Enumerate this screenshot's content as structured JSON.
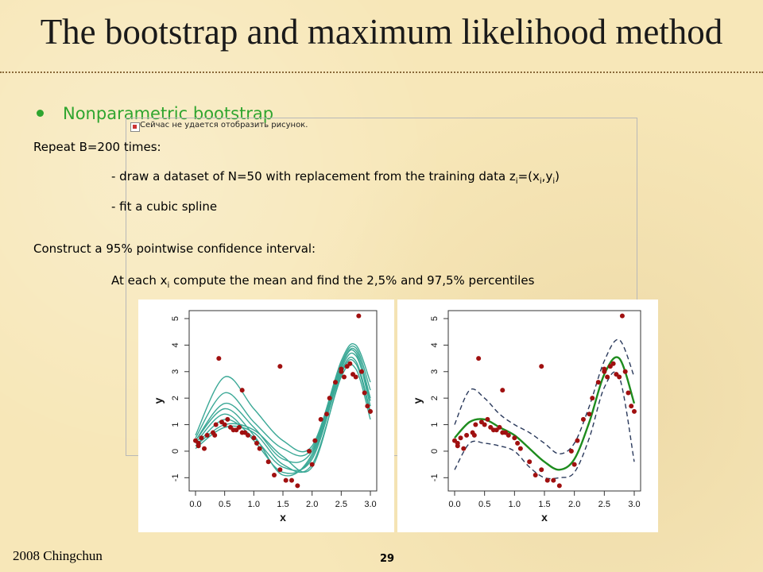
{
  "slide": {
    "title": "The bootstrap and maximum likelihood method",
    "bullet": "Nonparametric bootstrap",
    "placeholder_text": "Сейчас не удается отобразить рисунок.",
    "lines": {
      "repeat": "Repeat B=200 times:",
      "draw_prefix": "- draw a dataset of N=50 with replacement from the training data z",
      "draw_sub_i": "i",
      "draw_mid": "=(x",
      "draw_sub_i2": "i",
      "draw_comma": ",y",
      "draw_sub_i3": "i",
      "draw_end": ")",
      "fit": "- fit a cubic spline",
      "construct": "Construct a 95% pointwise confidence interval:",
      "atEach_prefix": "At each x",
      "atEach_sub": "i",
      "atEach_rest": " compute the mean and find the 2,5% and 97,5% percentiles"
    },
    "footer_left": "2008 Chingchun",
    "page_number": "29"
  },
  "colors": {
    "point": "#a01010",
    "bootstrap_curve": "#3aa896",
    "mean_curve": "#1e8c1e",
    "band": "#2b3a5c",
    "bullet": "#2fa52f"
  },
  "chart_data": [
    {
      "type": "scatter",
      "panel": "left",
      "overlay": "bootstrap cubic spline fits",
      "xlabel": "x",
      "ylabel": "y",
      "xlim": [
        0.0,
        3.0
      ],
      "ylim": [
        -1.5,
        5.3
      ],
      "xticks": [
        "0.0",
        "0.5",
        "1.0",
        "1.5",
        "2.0",
        "2.5",
        "3.0"
      ],
      "yticks": [
        "-1",
        "0",
        "1",
        "2",
        "3",
        "4",
        "5"
      ],
      "grid": false,
      "points": {
        "x": [
          0.0,
          0.05,
          0.1,
          0.15,
          0.2,
          0.3,
          0.33,
          0.4,
          0.45,
          0.5,
          0.55,
          0.6,
          0.65,
          0.7,
          0.75,
          0.8,
          0.85,
          0.9,
          1.0,
          1.05,
          1.1,
          1.35,
          1.45,
          1.55,
          1.65,
          1.75,
          1.95,
          2.0,
          2.05,
          2.15,
          2.25,
          2.3,
          2.4,
          2.5,
          2.55,
          2.6,
          2.65,
          2.7,
          2.75,
          2.8,
          2.85,
          2.9,
          2.95,
          3.0,
          1.45,
          2.5,
          0.05,
          0.35,
          0.8,
          1.25
        ],
        "y": [
          0.4,
          0.2,
          0.5,
          0.1,
          0.6,
          0.7,
          0.6,
          3.5,
          1.1,
          1.0,
          1.2,
          0.9,
          0.8,
          0.8,
          0.9,
          2.3,
          0.7,
          0.6,
          0.5,
          0.3,
          0.1,
          -0.9,
          3.2,
          -1.1,
          -1.1,
          -1.3,
          0.0,
          -0.5,
          0.4,
          1.2,
          1.4,
          2.0,
          2.6,
          3.0,
          2.8,
          3.2,
          3.3,
          2.9,
          2.8,
          5.1,
          3.0,
          2.2,
          1.7,
          1.5,
          -0.7,
          3.1,
          0.3,
          1.0,
          0.7,
          -0.4
        ]
      },
      "bootstrap_curves": [
        {
          "x": [
            0.0,
            0.5,
            1.0,
            1.5,
            2.0,
            2.5,
            2.75,
            3.0
          ],
          "y": [
            0.2,
            1.2,
            0.5,
            -0.6,
            -0.3,
            3.0,
            3.4,
            1.5
          ]
        },
        {
          "x": [
            0.0,
            0.5,
            1.0,
            1.5,
            2.0,
            2.5,
            2.75,
            3.0
          ],
          "y": [
            0.4,
            1.8,
            0.9,
            -0.3,
            0.0,
            3.2,
            3.8,
            2.0
          ]
        },
        {
          "x": [
            0.0,
            0.5,
            1.0,
            1.5,
            2.0,
            2.5,
            2.75,
            3.0
          ],
          "y": [
            0.6,
            2.8,
            1.6,
            0.4,
            0.2,
            3.4,
            4.0,
            2.6
          ]
        },
        {
          "x": [
            0.0,
            0.5,
            1.0,
            1.5,
            2.0,
            2.5,
            2.75,
            3.0
          ],
          "y": [
            0.1,
            0.9,
            0.7,
            -0.5,
            -0.5,
            2.8,
            3.1,
            1.2
          ]
        },
        {
          "x": [
            0.0,
            0.5,
            1.0,
            1.5,
            2.0,
            2.5,
            2.75,
            3.0
          ],
          "y": [
            0.3,
            1.4,
            0.4,
            -0.8,
            -0.2,
            3.1,
            3.6,
            1.9
          ]
        },
        {
          "x": [
            0.0,
            0.5,
            1.0,
            1.5,
            2.0,
            2.5,
            2.75,
            3.0
          ],
          "y": [
            0.5,
            2.2,
            1.1,
            0.1,
            0.1,
            3.3,
            3.9,
            2.3
          ]
        },
        {
          "x": [
            0.0,
            0.5,
            1.0,
            1.5,
            2.0,
            2.5,
            2.75,
            3.0
          ],
          "y": [
            0.2,
            1.0,
            0.8,
            -0.2,
            -0.6,
            2.9,
            3.3,
            1.4
          ]
        },
        {
          "x": [
            0.0,
            0.5,
            1.0,
            1.5,
            2.0,
            2.5,
            2.75,
            3.0
          ],
          "y": [
            0.4,
            1.6,
            0.6,
            -0.9,
            -0.1,
            3.2,
            3.7,
            1.7
          ]
        }
      ]
    },
    {
      "type": "scatter",
      "panel": "right",
      "overlay": "mean fit with 95% pointwise confidence band",
      "xlabel": "x",
      "ylabel": "y",
      "xlim": [
        0.0,
        3.0
      ],
      "ylim": [
        -1.5,
        5.3
      ],
      "xticks": [
        "0.0",
        "0.5",
        "1.0",
        "1.5",
        "2.0",
        "2.5",
        "3.0"
      ],
      "yticks": [
        "-1",
        "0",
        "1",
        "2",
        "3",
        "4",
        "5"
      ],
      "grid": false,
      "points": {
        "x": [
          0.0,
          0.05,
          0.1,
          0.15,
          0.2,
          0.3,
          0.33,
          0.4,
          0.45,
          0.5,
          0.55,
          0.6,
          0.65,
          0.7,
          0.75,
          0.8,
          0.85,
          0.9,
          1.0,
          1.05,
          1.1,
          1.35,
          1.45,
          1.55,
          1.65,
          1.75,
          1.95,
          2.0,
          2.05,
          2.15,
          2.25,
          2.3,
          2.4,
          2.5,
          2.55,
          2.6,
          2.65,
          2.7,
          2.75,
          2.8,
          2.85,
          2.9,
          2.95,
          3.0,
          1.45,
          2.5,
          0.05,
          0.35,
          0.8,
          1.25
        ],
        "y": [
          0.4,
          0.2,
          0.5,
          0.1,
          0.6,
          0.7,
          0.6,
          3.5,
          1.1,
          1.0,
          1.2,
          0.9,
          0.8,
          0.8,
          0.9,
          2.3,
          0.7,
          0.6,
          0.5,
          0.3,
          0.1,
          -0.9,
          3.2,
          -1.1,
          -1.1,
          -1.3,
          0.0,
          -0.5,
          0.4,
          1.2,
          1.4,
          2.0,
          2.6,
          3.0,
          2.8,
          3.2,
          3.3,
          2.9,
          2.8,
          5.1,
          3.0,
          2.2,
          1.7,
          1.5,
          -0.7,
          3.1,
          0.3,
          1.0,
          0.7,
          -0.4
        ]
      },
      "mean_curve": {
        "x": [
          0.0,
          0.25,
          0.5,
          0.75,
          1.0,
          1.25,
          1.5,
          1.75,
          2.0,
          2.25,
          2.5,
          2.75,
          3.0
        ],
        "y": [
          0.5,
          1.1,
          1.2,
          0.9,
          0.6,
          0.1,
          -0.4,
          -0.7,
          -0.3,
          1.1,
          2.9,
          3.5,
          1.8
        ]
      },
      "upper_band": {
        "x": [
          0.0,
          0.25,
          0.5,
          0.75,
          1.0,
          1.25,
          1.5,
          1.75,
          2.0,
          2.25,
          2.5,
          2.75,
          3.0
        ],
        "y": [
          1.0,
          2.3,
          2.0,
          1.4,
          1.0,
          0.7,
          0.3,
          -0.1,
          0.3,
          1.7,
          3.4,
          4.2,
          2.8
        ]
      },
      "lower_band": {
        "x": [
          0.0,
          0.25,
          0.5,
          0.75,
          1.0,
          1.25,
          1.5,
          1.75,
          2.0,
          2.25,
          2.5,
          2.75,
          3.0
        ],
        "y": [
          -0.7,
          0.3,
          0.3,
          0.2,
          0.0,
          -0.6,
          -1.0,
          -1.0,
          -0.8,
          0.5,
          2.4,
          2.8,
          -0.4
        ]
      }
    }
  ]
}
